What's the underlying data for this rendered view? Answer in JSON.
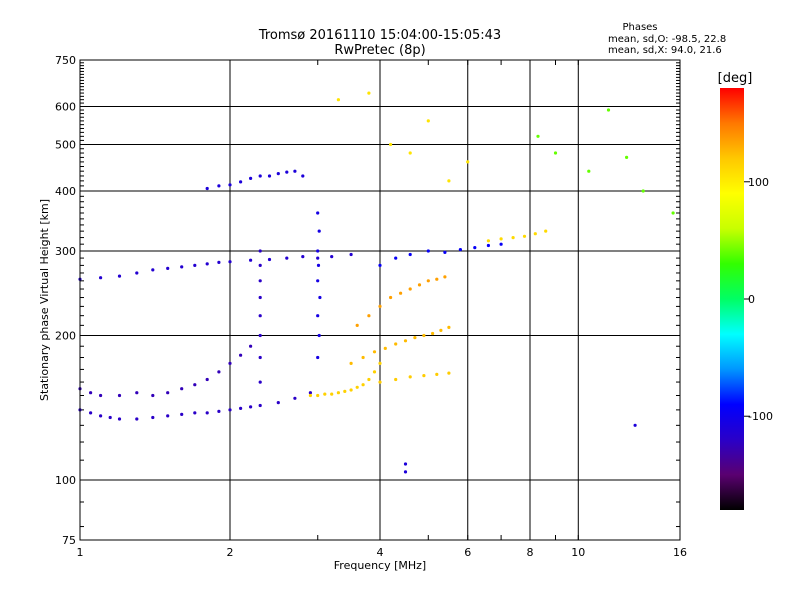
{
  "chart_data": {
    "type": "scatter",
    "title": "Tromsø 20161110 15:04:00-15:05:43",
    "subtitle": "RwPretec (8p)",
    "xlabel": "Frequency [MHz]",
    "ylabel": "Stationary phase Virtual Height [km]",
    "x_scale": "log",
    "y_scale": "log",
    "xlim": [
      1,
      16
    ],
    "ylim": [
      75,
      750
    ],
    "x_ticks": [
      1,
      2,
      4,
      6,
      8,
      10,
      16
    ],
    "x_tick_labels": [
      "1",
      "2",
      "4",
      "6",
      "8",
      "10",
      "16"
    ],
    "y_ticks": [
      75,
      100,
      200,
      300,
      400,
      500,
      600,
      750
    ],
    "y_tick_labels": [
      "75",
      "100",
      "200",
      "300",
      "400",
      "500",
      "600",
      "750"
    ],
    "grid": true,
    "stats": {
      "heading": "Phases",
      "line_o": "mean, sd,O:  -98.5, 22.8",
      "line_x": "mean, sd,X:  94.0, 21.6"
    },
    "colorbar": {
      "label": "[deg]",
      "range": [
        -180,
        180
      ],
      "ticks": [
        100,
        0,
        -100
      ],
      "tick_labels": [
        "100",
        "0",
        "-100"
      ],
      "colormap": [
        "#000000",
        "#5a0070",
        "#2a00c8",
        "#0000ff",
        "#0096ff",
        "#00ffff",
        "#00ff64",
        "#32ff00",
        "#c8ff00",
        "#ffff00",
        "#ffc800",
        "#ff7800",
        "#ff0000"
      ]
    },
    "series": [
      {
        "trace": "f-layer-low",
        "phase": -120,
        "x": [
          1.0,
          1.05,
          1.1,
          1.15,
          1.2,
          1.3,
          1.4,
          1.5,
          1.6,
          1.7,
          1.8,
          1.9,
          2.0,
          2.1,
          2.2,
          2.3,
          2.5,
          2.7,
          2.9
        ],
        "y": [
          140,
          138,
          136,
          135,
          134,
          134,
          135,
          136,
          137,
          138,
          138,
          139,
          140,
          141,
          142,
          143,
          145,
          148,
          152
        ]
      },
      {
        "trace": "e-layer-branch",
        "phase": -125,
        "x": [
          1.0,
          1.05,
          1.1,
          1.2,
          1.3,
          1.4,
          1.5,
          1.6,
          1.7,
          1.8,
          1.9,
          2.0,
          2.1,
          2.2
        ],
        "y": [
          155,
          152,
          150,
          150,
          152,
          150,
          152,
          155,
          158,
          162,
          168,
          175,
          182,
          190
        ]
      },
      {
        "trace": "f-layer-high",
        "phase": -115,
        "x": [
          1.0,
          1.1,
          1.2,
          1.3,
          1.4,
          1.5,
          1.6,
          1.7,
          1.8,
          1.9,
          2.0,
          2.2,
          2.4,
          2.6,
          2.8,
          3.0,
          3.2,
          3.5
        ],
        "y": [
          262,
          264,
          266,
          270,
          274,
          276,
          278,
          280,
          282,
          284,
          285,
          287,
          288,
          290,
          292,
          290,
          292,
          295
        ]
      },
      {
        "trace": "upper-echo",
        "phase": -110,
        "x": [
          1.8,
          1.9,
          2.0,
          2.1,
          2.2,
          2.3,
          2.4,
          2.5,
          2.6,
          2.7,
          2.8
        ],
        "y": [
          405,
          410,
          412,
          418,
          425,
          430,
          430,
          435,
          438,
          440,
          430
        ]
      },
      {
        "trace": "vertical-2.3",
        "phase": -120,
        "x": [
          2.3,
          2.3,
          2.3,
          2.3,
          2.3,
          2.3,
          2.3,
          2.3
        ],
        "y": [
          160,
          180,
          200,
          220,
          240,
          260,
          280,
          300
        ]
      },
      {
        "trace": "vertical-3.0",
        "phase": -105,
        "x": [
          3.0,
          3.02,
          3.0,
          3.03,
          3.0,
          3.01,
          3.0,
          3.02,
          3.0
        ],
        "y": [
          180,
          200,
          220,
          240,
          260,
          280,
          300,
          330,
          360
        ]
      },
      {
        "trace": "e-plateau",
        "phase": 115,
        "x": [
          2.9,
          3.0,
          3.1,
          3.2,
          3.3,
          3.4,
          3.5,
          3.6,
          3.7,
          3.8,
          3.9,
          4.0
        ],
        "y": [
          150,
          150,
          151,
          151,
          152,
          153,
          154,
          156,
          158,
          162,
          168,
          175
        ]
      },
      {
        "trace": "mid-cluster-a",
        "phase": 125,
        "x": [
          3.5,
          3.7,
          3.9,
          4.1,
          4.3,
          4.5,
          4.7,
          4.9,
          5.1,
          5.3,
          5.5
        ],
        "y": [
          175,
          180,
          185,
          188,
          192,
          195,
          198,
          200,
          202,
          205,
          208
        ]
      },
      {
        "trace": "mid-cluster-b",
        "phase": 135,
        "x": [
          3.6,
          3.8,
          4.0,
          4.2,
          4.4,
          4.6,
          4.8,
          5.0,
          5.2,
          5.4
        ],
        "y": [
          210,
          220,
          230,
          240,
          245,
          250,
          255,
          260,
          262,
          265
        ]
      },
      {
        "trace": "right-spread",
        "phase": -95,
        "x": [
          4.0,
          4.3,
          4.6,
          5.0,
          5.4,
          5.8,
          6.2,
          6.6,
          7.0
        ],
        "y": [
          280,
          290,
          295,
          300,
          298,
          302,
          305,
          308,
          310
        ]
      },
      {
        "trace": "right-arm",
        "phase": 110,
        "x": [
          6.6,
          7.0,
          7.4,
          7.8,
          8.2,
          8.6
        ],
        "y": [
          315,
          318,
          320,
          322,
          326,
          330
        ]
      },
      {
        "trace": "lower-right",
        "phase": 118,
        "x": [
          4.0,
          4.3,
          4.6,
          4.9,
          5.2,
          5.5
        ],
        "y": [
          160,
          162,
          164,
          165,
          166,
          167
        ]
      },
      {
        "trace": "scatter-top",
        "phase": 105,
        "x": [
          3.3,
          3.8,
          4.2,
          4.6,
          5.0,
          5.5,
          6.0
        ],
        "y": [
          620,
          640,
          500,
          480,
          560,
          420,
          460
        ]
      },
      {
        "trace": "isolated-right",
        "phase": 40,
        "x": [
          8.3,
          9.0,
          10.5,
          11.5,
          12.5,
          13.5,
          15.5
        ],
        "y": [
          520,
          480,
          440,
          590,
          470,
          400,
          360
        ]
      },
      {
        "trace": "low-outliers",
        "phase": -110,
        "x": [
          4.5,
          4.5,
          13.0
        ],
        "y": [
          104,
          108,
          130
        ]
      }
    ]
  }
}
